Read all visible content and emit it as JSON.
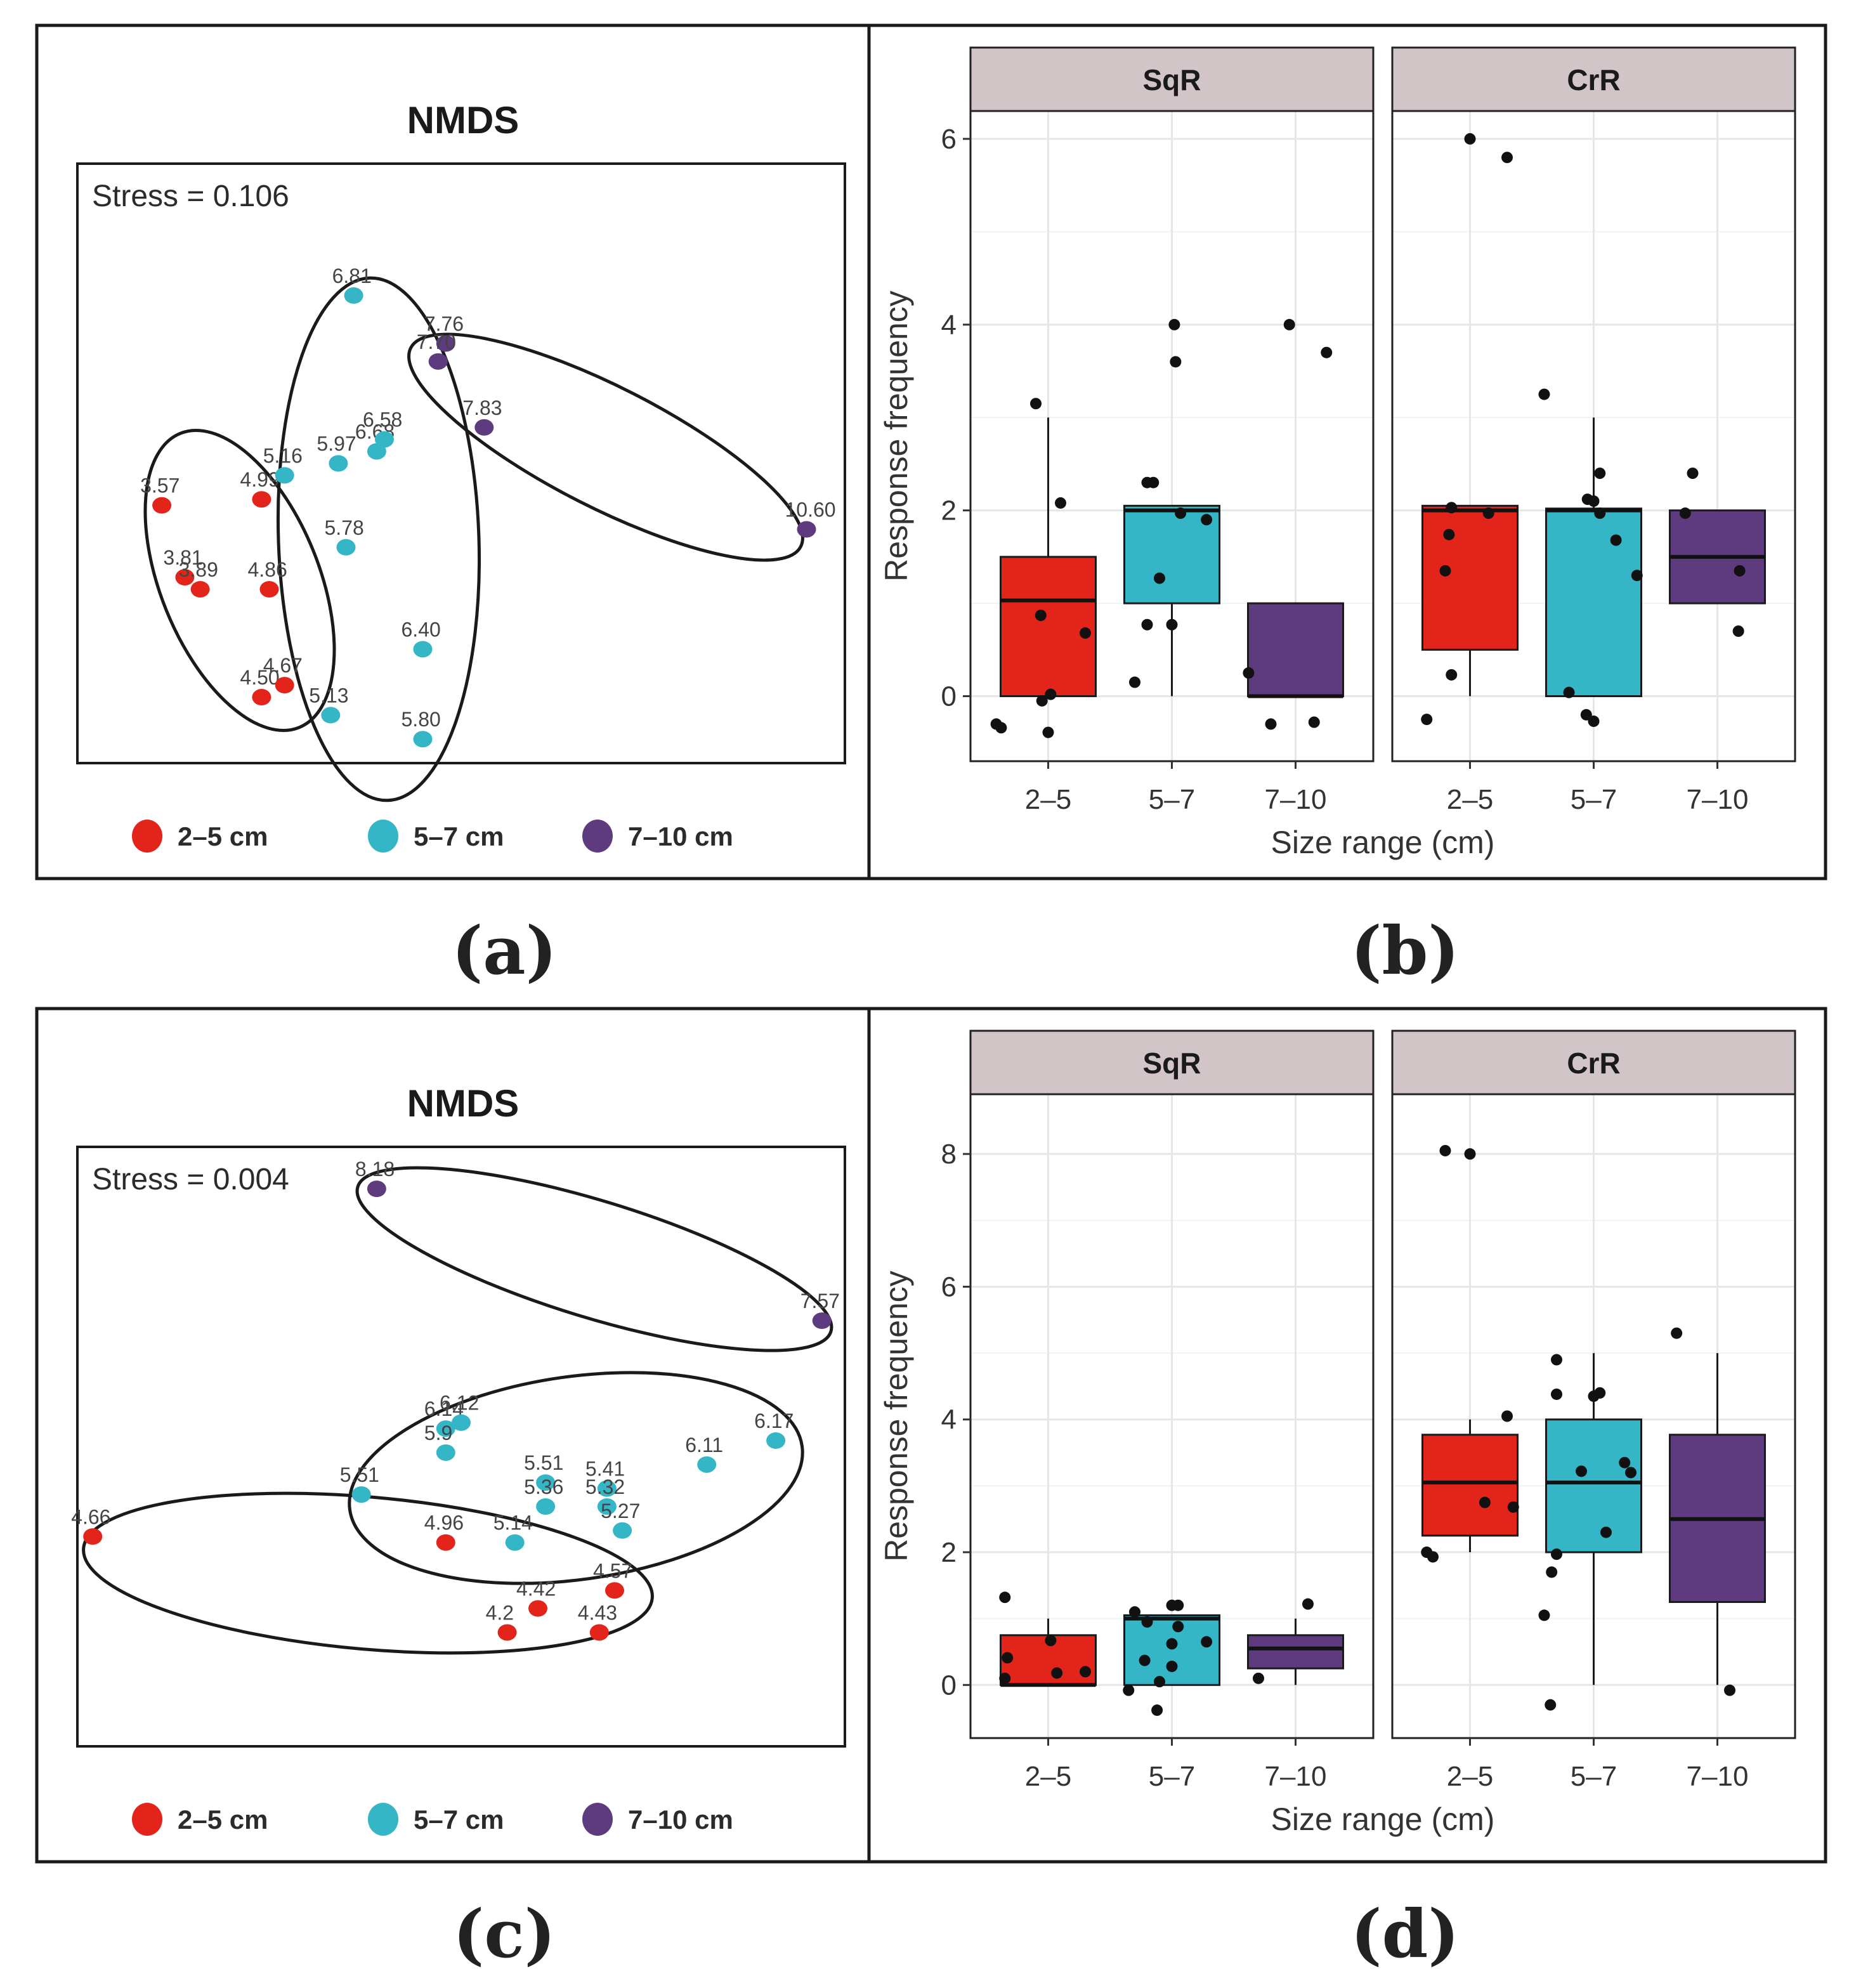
{
  "colors": {
    "2-5": "#e3241b",
    "5-7": "#35b6c7",
    "7-10": "#5e3a7f",
    "point": "#111111",
    "strip_fill": "#d2c5c7",
    "grid": "#e6e6e6"
  },
  "chart_data": [
    {
      "panel": "(a)",
      "type": "scatter",
      "title": "NMDS",
      "stress_text": "Stress = 0.106",
      "legend": [
        {
          "key": "2-5",
          "label": "2–5 cm"
        },
        {
          "key": "5-7",
          "label": "5–7 cm"
        },
        {
          "key": "7-10",
          "label": "7–10 cm"
        }
      ],
      "points": [
        {
          "label": "3.57",
          "group": "2-5",
          "x": 0.11,
          "y": 0.43
        },
        {
          "label": "3.81",
          "group": "2-5",
          "x": 0.14,
          "y": 0.31
        },
        {
          "label": "3.89",
          "group": "2-5",
          "x": 0.16,
          "y": 0.29
        },
        {
          "label": "4.86",
          "group": "2-5",
          "x": 0.25,
          "y": 0.29
        },
        {
          "label": "4.99",
          "group": "2-5",
          "x": 0.24,
          "y": 0.44
        },
        {
          "label": "4.50",
          "group": "2-5",
          "x": 0.24,
          "y": 0.11
        },
        {
          "label": "4.67",
          "group": "2-5",
          "x": 0.27,
          "y": 0.13
        },
        {
          "label": "5.16",
          "group": "5-7",
          "x": 0.27,
          "y": 0.48
        },
        {
          "label": "5.97",
          "group": "5-7",
          "x": 0.34,
          "y": 0.5
        },
        {
          "label": "6.68",
          "group": "5-7",
          "x": 0.39,
          "y": 0.52
        },
        {
          "label": "6.58",
          "group": "5-7",
          "x": 0.4,
          "y": 0.54
        },
        {
          "label": "6.81",
          "group": "5-7",
          "x": 0.36,
          "y": 0.78
        },
        {
          "label": "5.78",
          "group": "5-7",
          "x": 0.35,
          "y": 0.36
        },
        {
          "label": "6.40",
          "group": "5-7",
          "x": 0.45,
          "y": 0.19
        },
        {
          "label": "5.13",
          "group": "5-7",
          "x": 0.33,
          "y": 0.08
        },
        {
          "label": "5.80",
          "group": "5-7",
          "x": 0.45,
          "y": 0.04
        },
        {
          "label": "7.76",
          "group": "7-10",
          "x": 0.48,
          "y": 0.7
        },
        {
          "label": "7.70",
          "group": "7-10",
          "x": 0.47,
          "y": 0.67
        },
        {
          "label": "7.83",
          "group": "7-10",
          "x": 0.53,
          "y": 0.56
        },
        {
          "label": "10.60",
          "group": "7-10",
          "x": 0.95,
          "y": 0.39
        }
      ]
    },
    {
      "panel": "(b)",
      "type": "box",
      "xlabel": "Size range (cm)",
      "ylabel": "Response frequency",
      "ylim": [
        -0.7,
        6.3
      ],
      "yticks": [
        0,
        2,
        4,
        6
      ],
      "categories": [
        "2–5",
        "5–7",
        "7–10"
      ],
      "facets": [
        {
          "name": "SqR",
          "boxes": [
            {
              "group": "2-5",
              "q1": 0,
              "median": 1.03,
              "q3": 1.5,
              "whisker_low": 0,
              "whisker_high": 3,
              "points": [
                [
                  -0.1,
                  3.15
                ],
                [
                  0.1,
                  2.08
                ],
                [
                  -0.06,
                  0.87
                ],
                [
                  0.3,
                  0.68
                ],
                [
                  0.02,
                  0.02
                ],
                [
                  -0.38,
                  -0.34
                ],
                [
                  -0.05,
                  -0.05
                ],
                [
                  -0.42,
                  -0.3
                ],
                [
                  0.0,
                  -0.39
                ]
              ]
            },
            {
              "group": "5-7",
              "q1": 1.0,
              "median": 2.0,
              "q3": 2.05,
              "whisker_low": 0,
              "whisker_high": 2.05,
              "points": [
                [
                  -0.2,
                  2.3
                ],
                [
                  -0.15,
                  2.3
                ],
                [
                  0.07,
                  1.97
                ],
                [
                  0.28,
                  1.9
                ],
                [
                  -0.1,
                  1.27
                ],
                [
                  -0.2,
                  0.77
                ],
                [
                  0.0,
                  0.77
                ],
                [
                  -0.3,
                  0.15
                ],
                [
                  0.02,
                  4.0
                ],
                [
                  0.03,
                  3.6
                ]
              ]
            },
            {
              "group": "7-10",
              "q1": 0,
              "median": 0,
              "q3": 1.0,
              "whisker_low": 0,
              "whisker_high": 1.0,
              "points": [
                [
                  -0.05,
                  4.0
                ],
                [
                  0.25,
                  3.7
                ],
                [
                  -0.38,
                  0.25
                ],
                [
                  -0.2,
                  -0.3
                ],
                [
                  0.15,
                  -0.28
                ]
              ]
            }
          ]
        },
        {
          "name": "CrR",
          "boxes": [
            {
              "group": "2-5",
              "q1": 0.5,
              "median": 2.0,
              "q3": 2.05,
              "whisker_low": 0,
              "whisker_high": 2.05,
              "points": [
                [
                  0.0,
                  6.0
                ],
                [
                  0.3,
                  5.8
                ],
                [
                  -0.17,
                  1.74
                ],
                [
                  -0.15,
                  2.03
                ],
                [
                  0.15,
                  1.97
                ],
                [
                  -0.2,
                  1.35
                ],
                [
                  -0.15,
                  0.23
                ],
                [
                  -0.35,
                  -0.25
                ]
              ]
            },
            {
              "group": "5-7",
              "q1": 0,
              "median": 2.0,
              "q3": 2.02,
              "whisker_low": 0,
              "whisker_high": 3,
              "points": [
                [
                  -0.4,
                  3.25
                ],
                [
                  0.05,
                  2.4
                ],
                [
                  -0.05,
                  2.12
                ],
                [
                  0.0,
                  2.1
                ],
                [
                  0.05,
                  1.97
                ],
                [
                  0.18,
                  1.68
                ],
                [
                  0.35,
                  1.3
                ],
                [
                  -0.2,
                  0.04
                ],
                [
                  -0.06,
                  -0.2
                ],
                [
                  0.0,
                  -0.27
                ]
              ]
            },
            {
              "group": "7-10",
              "q1": 1.0,
              "median": 1.5,
              "q3": 2.0,
              "whisker_low": 1.0,
              "whisker_high": 2.0,
              "points": [
                [
                  -0.2,
                  2.4
                ],
                [
                  -0.26,
                  1.97
                ],
                [
                  0.18,
                  1.35
                ],
                [
                  0.17,
                  0.7
                ]
              ]
            }
          ]
        }
      ]
    },
    {
      "panel": "(c)",
      "type": "scatter",
      "title": "NMDS",
      "stress_text": "Stress = 0.004",
      "legend": [
        {
          "key": "2-5",
          "label": "2–5 cm"
        },
        {
          "key": "5-7",
          "label": "5–7 cm"
        },
        {
          "key": "7-10",
          "label": "7–10 cm"
        }
      ],
      "points": [
        {
          "label": "8.18",
          "group": "7-10",
          "x": 0.39,
          "y": 0.93
        },
        {
          "label": "7.57",
          "group": "7-10",
          "x": 0.97,
          "y": 0.71
        },
        {
          "label": "6.14",
          "group": "5-7",
          "x": 0.48,
          "y": 0.53
        },
        {
          "label": "6.12",
          "group": "5-7",
          "x": 0.5,
          "y": 0.54
        },
        {
          "label": "5.9",
          "group": "5-7",
          "x": 0.48,
          "y": 0.49
        },
        {
          "label": "6.11",
          "group": "5-7",
          "x": 0.82,
          "y": 0.47
        },
        {
          "label": "6.17",
          "group": "5-7",
          "x": 0.91,
          "y": 0.51
        },
        {
          "label": "5.51",
          "group": "5-7",
          "x": 0.37,
          "y": 0.42
        },
        {
          "label": "5.51",
          "group": "5-7",
          "x": 0.61,
          "y": 0.44
        },
        {
          "label": "5.36",
          "group": "5-7",
          "x": 0.61,
          "y": 0.4
        },
        {
          "label": "5.41",
          "group": "5-7",
          "x": 0.69,
          "y": 0.43
        },
        {
          "label": "5.32",
          "group": "5-7",
          "x": 0.69,
          "y": 0.4
        },
        {
          "label": "5.27",
          "group": "5-7",
          "x": 0.71,
          "y": 0.36
        },
        {
          "label": "5.14",
          "group": "5-7",
          "x": 0.57,
          "y": 0.34
        },
        {
          "label": "4.66",
          "group": "2-5",
          "x": 0.02,
          "y": 0.35
        },
        {
          "label": "4.96",
          "group": "2-5",
          "x": 0.48,
          "y": 0.34
        },
        {
          "label": "4.57",
          "group": "2-5",
          "x": 0.7,
          "y": 0.26
        },
        {
          "label": "4.42",
          "group": "2-5",
          "x": 0.6,
          "y": 0.23
        },
        {
          "label": "4.2",
          "group": "2-5",
          "x": 0.56,
          "y": 0.19
        },
        {
          "label": "4.43",
          "group": "2-5",
          "x": 0.68,
          "y": 0.19
        }
      ]
    },
    {
      "panel": "(d)",
      "type": "box",
      "xlabel": "Size range (cm)",
      "ylabel": "Response frequency",
      "ylim": [
        -0.8,
        8.9
      ],
      "yticks": [
        0,
        2,
        4,
        6,
        8
      ],
      "categories": [
        "2–5",
        "5–7",
        "7–10"
      ],
      "facets": [
        {
          "name": "SqR",
          "boxes": [
            {
              "group": "2-5",
              "q1": 0,
              "median": 0,
              "q3": 0.75,
              "whisker_low": 0,
              "whisker_high": 1.0,
              "points": [
                [
                  -0.35,
                  1.32
                ],
                [
                  0.02,
                  0.67
                ],
                [
                  -0.33,
                  0.41
                ],
                [
                  -0.35,
                  0.1
                ],
                [
                  0.07,
                  0.18
                ],
                [
                  0.3,
                  0.2
                ]
              ]
            },
            {
              "group": "5-7",
              "q1": 0,
              "median": 1.0,
              "q3": 1.05,
              "whisker_low": 0,
              "whisker_high": 1.05,
              "points": [
                [
                  -0.3,
                  1.1
                ],
                [
                  -0.2,
                  0.95
                ],
                [
                  0.0,
                  1.2
                ],
                [
                  0.05,
                  1.2
                ],
                [
                  0.05,
                  0.88
                ],
                [
                  0.28,
                  0.65
                ],
                [
                  0.0,
                  0.62
                ],
                [
                  -0.22,
                  0.37
                ],
                [
                  0.0,
                  0.28
                ],
                [
                  -0.1,
                  0.05
                ],
                [
                  -0.35,
                  -0.08
                ],
                [
                  -0.12,
                  -0.38
                ]
              ]
            },
            {
              "group": "7-10",
              "q1": 0.25,
              "median": 0.55,
              "q3": 0.75,
              "whisker_low": 0,
              "whisker_high": 1.0,
              "points": [
                [
                  0.1,
                  1.22
                ],
                [
                  -0.3,
                  0.1
                ]
              ]
            }
          ]
        },
        {
          "name": "CrR",
          "boxes": [
            {
              "group": "2-5",
              "q1": 2.25,
              "median": 3.05,
              "q3": 3.77,
              "whisker_low": 2.0,
              "whisker_high": 4.0,
              "points": [
                [
                  -0.2,
                  8.05
                ],
                [
                  0.0,
                  8.0
                ],
                [
                  0.3,
                  4.05
                ],
                [
                  0.12,
                  2.75
                ],
                [
                  0.35,
                  2.68
                ],
                [
                  -0.35,
                  2.0
                ],
                [
                  -0.3,
                  1.93
                ]
              ]
            },
            {
              "group": "5-7",
              "q1": 2.0,
              "median": 3.05,
              "q3": 4.0,
              "whisker_low": 0,
              "whisker_high": 5.0,
              "points": [
                [
                  -0.3,
                  4.9
                ],
                [
                  -0.3,
                  4.38
                ],
                [
                  0.0,
                  4.35
                ],
                [
                  0.05,
                  4.4
                ],
                [
                  0.25,
                  3.35
                ],
                [
                  0.3,
                  3.2
                ],
                [
                  -0.1,
                  3.22
                ],
                [
                  0.1,
                  2.3
                ],
                [
                  -0.3,
                  1.97
                ],
                [
                  -0.34,
                  1.7
                ],
                [
                  -0.4,
                  1.05
                ],
                [
                  -0.35,
                  -0.3
                ]
              ]
            },
            {
              "group": "7-10",
              "q1": 1.25,
              "median": 2.5,
              "q3": 3.77,
              "whisker_low": 0,
              "whisker_high": 5.0,
              "points": [
                [
                  -0.33,
                  5.3
                ],
                [
                  0.1,
                  -0.08
                ]
              ]
            }
          ]
        }
      ]
    }
  ]
}
